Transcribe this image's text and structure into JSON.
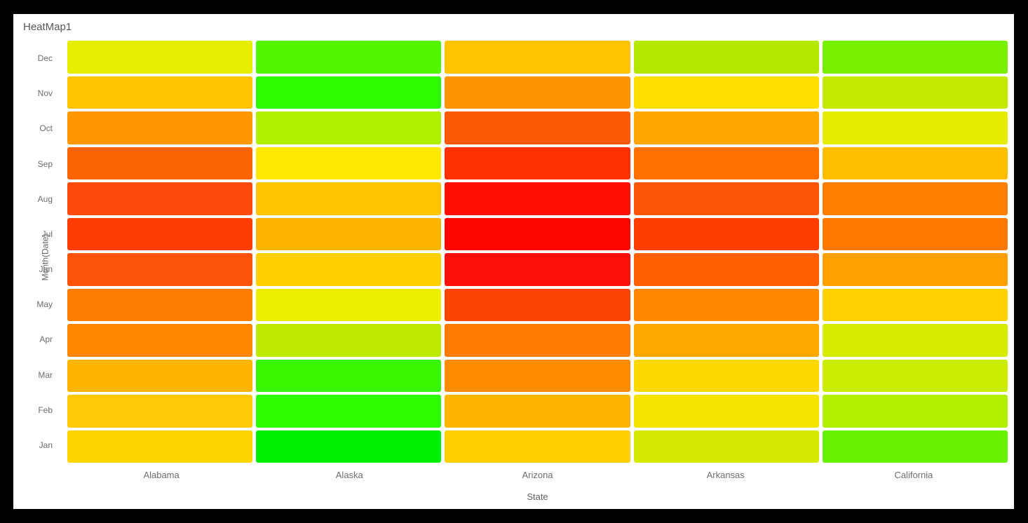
{
  "window": {
    "title": "HeatMap1"
  },
  "colors": {
    "page_background": "#000000",
    "card_background": "#ffffff",
    "title_text": "#54585a",
    "axis_text": "#6d6d6d"
  },
  "chart_data": {
    "type": "heatmap",
    "title": "HeatMap1",
    "xlabel": "State",
    "ylabel": "Month(Date)",
    "legend": "none",
    "grid_gap_color": "#ffffff",
    "categories_x": [
      "Alabama",
      "Alaska",
      "Arizona",
      "Arkansas",
      "California"
    ],
    "categories_y_top_to_bottom": [
      "Dec",
      "Nov",
      "Oct",
      "Sep",
      "Aug",
      "Jul",
      "Jun",
      "May",
      "Apr",
      "Mar",
      "Feb",
      "Jan"
    ],
    "color_scale": {
      "low": "#00ee00",
      "mid": "#ffe900",
      "high": "#fe0600"
    },
    "rows": [
      {
        "month": "Dec",
        "colors": [
          "#e5ee00",
          "#55f500",
          "#ffc400",
          "#b5e800",
          "#77f000"
        ]
      },
      {
        "month": "Nov",
        "colors": [
          "#ffc400",
          "#2efb00",
          "#ff9300",
          "#ffdf00",
          "#c3ea00"
        ]
      },
      {
        "month": "Oct",
        "colors": [
          "#ff9800",
          "#aff000",
          "#fc5a06",
          "#ffa600",
          "#e4ec00"
        ]
      },
      {
        "month": "Sep",
        "colors": [
          "#fd6405",
          "#ffe900",
          "#fe3103",
          "#ff7000",
          "#ffbe00"
        ]
      },
      {
        "month": "Aug",
        "colors": [
          "#fb4a0c",
          "#ffc400",
          "#fe0f00",
          "#fa5407",
          "#fd8000"
        ]
      },
      {
        "month": "Jul",
        "colors": [
          "#fe3b02",
          "#ffb400",
          "#fe0600",
          "#fe3d00",
          "#ff7900"
        ]
      },
      {
        "month": "Jun",
        "colors": [
          "#fb5409",
          "#ffd000",
          "#fb100a",
          "#ff6000",
          "#ffa000"
        ]
      },
      {
        "month": "May",
        "colors": [
          "#ff7d00",
          "#eeee00",
          "#fc4405",
          "#ff8800",
          "#ffd200"
        ]
      },
      {
        "month": "Apr",
        "colors": [
          "#fe8601",
          "#bdea00",
          "#ff7c00",
          "#ffa800",
          "#d6ec00"
        ]
      },
      {
        "month": "Mar",
        "colors": [
          "#ffb400",
          "#39f600",
          "#ff8c00",
          "#ffd800",
          "#ccec00"
        ]
      },
      {
        "month": "Feb",
        "colors": [
          "#ffc90a",
          "#2eff00",
          "#ffb400",
          "#f4e400",
          "#b2ee00"
        ]
      },
      {
        "month": "Jan",
        "colors": [
          "#ffd500",
          "#00ee00",
          "#ffcf00",
          "#d3e900",
          "#66f200"
        ]
      }
    ]
  }
}
